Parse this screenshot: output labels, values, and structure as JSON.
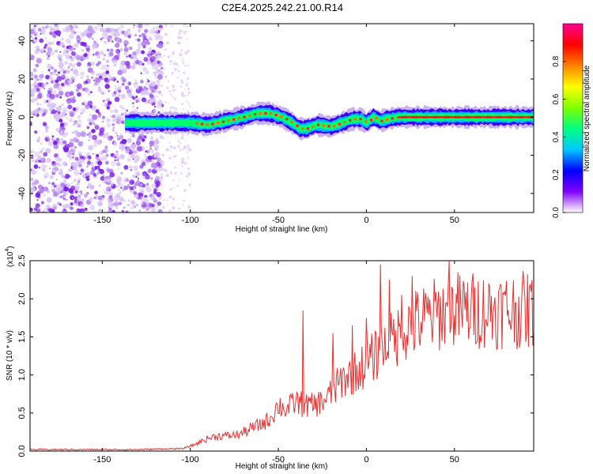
{
  "chart_data": [
    {
      "type": "heatmap",
      "title": "C2E4.2025.242.21.00.R14",
      "xlabel": "Height of straight line (km)",
      "ylabel": "Frequency (Hz)",
      "xlim": [
        -191,
        95
      ],
      "ylim": [
        -50,
        49
      ],
      "xticks": [
        -150,
        -100,
        -50,
        0,
        50
      ],
      "xtick_labels": [
        "-150",
        "-100",
        "-50",
        "0",
        "50"
      ],
      "yticks": [
        -40,
        -20,
        0,
        20,
        40
      ],
      "ytick_labels": [
        "-40",
        "-20",
        "0",
        "20",
        "40"
      ],
      "ridge": {
        "x": [
          -137,
          -125,
          -115,
          -100,
          -90,
          -80,
          -70,
          -62,
          -55,
          -48,
          -42,
          -38,
          -34,
          -28,
          -20,
          -14,
          -8,
          -3,
          0,
          4,
          8,
          12,
          18,
          30,
          50,
          70,
          95
        ],
        "y": [
          -3,
          -3,
          -3,
          -3,
          -4,
          -2,
          0,
          2,
          2,
          0,
          -3,
          -6,
          -6,
          -4,
          -5,
          -3,
          -1,
          -1,
          -3,
          0,
          -2,
          -1,
          0,
          0,
          0,
          0,
          0
        ]
      },
      "colorbar": {
        "label": "Normalized spectral amplitude",
        "range": [
          0,
          1
        ],
        "ticks": [
          0.0,
          0.2,
          0.4,
          0.6,
          0.8
        ],
        "tick_labels": [
          "0.0",
          "0.2",
          "0.4",
          "0.6",
          "0.8"
        ],
        "colors": [
          "#ffffff",
          "#8000ff",
          "#0000ff",
          "#00c8ff",
          "#00ff80",
          "#80ff00",
          "#ffff00",
          "#ff8000",
          "#ff0000",
          "#ff0090"
        ]
      }
    },
    {
      "type": "line",
      "title": "",
      "xlabel": "Height of straight line (km)",
      "ylabel": "SNR (10 * v/v)",
      "scale_label": "(x10",
      "scale_exp": "4",
      "scale_close": ")",
      "xlim": [
        -191,
        95
      ],
      "ylim": [
        0,
        2.5
      ],
      "xticks": [
        -150,
        -100,
        -50,
        0,
        50
      ],
      "xtick_labels": [
        "-150",
        "-100",
        "-50",
        "0",
        "50"
      ],
      "yticks": [
        0.0,
        0.5,
        1.0,
        1.5,
        2.0,
        2.5
      ],
      "ytick_labels": [
        "0.0",
        "0.5",
        "1.0",
        "1.5",
        "2.0",
        "2.5"
      ],
      "series": [
        {
          "name": "SNR",
          "color": "#e83030",
          "trend_x": [
            -191,
            -130,
            -115,
            -105,
            -98,
            -92,
            -85,
            -78,
            -72,
            -65,
            -60,
            -55,
            -50,
            -45,
            -40,
            -35,
            -30,
            -25,
            -20,
            -15,
            -10,
            -5,
            0,
            5,
            10,
            15,
            20,
            25,
            30,
            40,
            50,
            60,
            70,
            80,
            95
          ],
          "trend_y": [
            0.02,
            0.02,
            0.03,
            0.03,
            0.08,
            0.15,
            0.2,
            0.2,
            0.22,
            0.3,
            0.35,
            0.42,
            0.6,
            0.55,
            0.65,
            0.6,
            0.6,
            0.65,
            0.75,
            0.9,
            1.0,
            1.05,
            1.15,
            1.25,
            1.35,
            1.45,
            1.55,
            1.65,
            1.7,
            1.8,
            1.85,
            1.85,
            1.85,
            1.85,
            1.85
          ],
          "peaks_x": [
            -36,
            -19,
            -8,
            0,
            8,
            13,
            20,
            26,
            47,
            52
          ],
          "peaks_y": [
            1.85,
            1.55,
            1.65,
            1.75,
            2.45,
            2.25,
            2.05,
            2.3,
            2.5,
            2.35
          ]
        }
      ]
    }
  ]
}
